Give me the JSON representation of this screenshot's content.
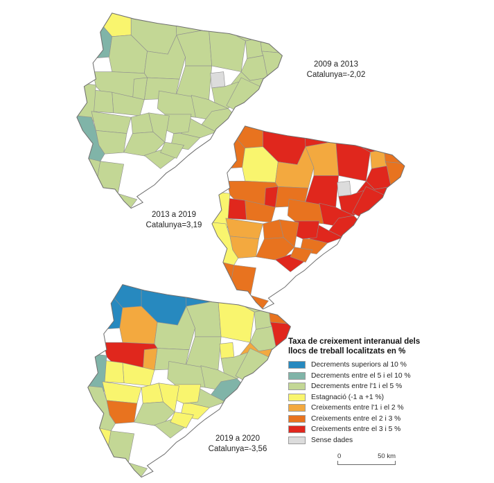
{
  "figure": {
    "legend": {
      "title_line1": "Taxa de creixement interanual dels",
      "title_line2": "llocs de treball localitzats en %",
      "items": [
        {
          "code": "b",
          "label": "Decrements superiors al 10 %",
          "color": "#2789bf"
        },
        {
          "code": "t",
          "label": "Decrements entre el 5 i el 10 %",
          "color": "#80b4a8"
        },
        {
          "code": "g3",
          "label": "Decrements entre l'1 i el 5 %",
          "color": "#c3d795"
        },
        {
          "code": "y",
          "label": "Estagnació (-1 a +1 %)",
          "color": "#f9f56e"
        },
        {
          "code": "o1",
          "label": "Creixements entre l'1 i el 2 %",
          "color": "#f3a93f"
        },
        {
          "code": "o2",
          "label": "Creixements entre el 2 i 3 %",
          "color": "#e8731f"
        },
        {
          "code": "r",
          "label": "Creixements entre el 3 i 5 %",
          "color": "#e0271d"
        },
        {
          "code": "nd",
          "label": "Sense dades",
          "color": "#dcdcdc"
        }
      ]
    },
    "scalebar": {
      "start": "0",
      "end": "50 km"
    },
    "maps": [
      {
        "id": "map-2009-2013",
        "period": "2009 a 2013",
        "catalunya": "Catalunya=-2,02",
        "regions": {
          "aran": "y",
          "pallars-sobira": "g3",
          "cerdanya": "g3",
          "ripolles": "y",
          "garrotxa": "g3",
          "alt-emporda": "g3",
          "alta-ribagorca": "t",
          "pallars-jussa": "g3",
          "alt-urgell": "g3",
          "bergueda": "g3",
          "osona": "g3",
          "pla-estany": "g3",
          "baix-emporda": "g3",
          "girones": "g3",
          "selva": "g3",
          "noguera": "g3",
          "solsones": "g3",
          "bages": "g3",
          "moianes": "nd",
          "valles-oriental": "g3",
          "maresme": "g3",
          "valles-occidental": "g3",
          "barcelones": "g3",
          "baix-llobregat": "g3",
          "garraf": "g3",
          "alt-penedes": "g3",
          "anoia": "g3",
          "segarra": "g3",
          "urgell": "g3",
          "pla-urgell": "g3",
          "segria": "g3",
          "garrigues": "g3",
          "conca": "g3",
          "alt-camp": "g3",
          "baix-camp": "g3",
          "priorat": "g3",
          "ribera-ebre": "t",
          "tarragones": "g3",
          "baix-penedes": "g3",
          "terra-alta": "g3",
          "baix-ebre": "g3",
          "montsia": "g3"
        }
      },
      {
        "id": "map-2013-2019",
        "period": "2013 a 2019",
        "catalunya": "Catalunya=3,19",
        "regions": {
          "aran": "o2",
          "pallars-sobira": "r",
          "cerdanya": "r",
          "ripolles": "o1",
          "garrotxa": "r",
          "alt-emporda": "o2",
          "alta-ribagorca": "o2",
          "pallars-jussa": "y",
          "alt-urgell": "o1",
          "bergueda": "o1",
          "osona": "r",
          "pla-estany": "o1",
          "baix-emporda": "o2",
          "girones": "r",
          "selva": "r",
          "noguera": "o2",
          "solsones": "o2",
          "bages": "r",
          "moianes": "nd",
          "valles-oriental": "r",
          "maresme": "r",
          "valles-occidental": "r",
          "barcelones": "r",
          "baix-llobregat": "r",
          "garraf": "o2",
          "alt-penedes": "r",
          "anoia": "o2",
          "segarra": "r",
          "urgell": "o2",
          "pla-urgell": "r",
          "segria": "y",
          "garrigues": "o1",
          "conca": "o2",
          "alt-camp": "o2",
          "baix-camp": "o2",
          "priorat": "o1",
          "ribera-ebre": "y",
          "tarragones": "r",
          "baix-penedes": "o2",
          "terra-alta": "o2",
          "baix-ebre": "o2",
          "montsia": "o2"
        }
      },
      {
        "id": "map-2019-2020",
        "period": "2019 a 2020",
        "catalunya": "Catalunya=-3,56",
        "regions": {
          "aran": "b",
          "pallars-sobira": "b",
          "cerdanya": "b",
          "ripolles": "g3",
          "garrotxa": "g3",
          "alt-emporda": "o2",
          "alta-ribagorca": "b",
          "pallars-jussa": "o1",
          "alt-urgell": "g3",
          "bergueda": "g3",
          "osona": "y",
          "pla-estany": "g3",
          "baix-emporda": "r",
          "girones": "g3",
          "selva": "o1",
          "noguera": "r",
          "solsones": "g3",
          "bages": "g3",
          "moianes": "y",
          "valles-oriental": "g3",
          "maresme": "g3",
          "valles-occidental": "g3",
          "barcelones": "t",
          "baix-llobregat": "g3",
          "garraf": "y",
          "alt-penedes": "y",
          "anoia": "g3",
          "segarra": "o1",
          "urgell": "y",
          "pla-urgell": "y",
          "segria": "t",
          "garrigues": "y",
          "conca": "y",
          "alt-camp": "y",
          "baix-camp": "g3",
          "priorat": "o2",
          "ribera-ebre": "g3",
          "tarragones": "g3",
          "baix-penedes": "y",
          "terra-alta": "y",
          "baix-ebre": "g3",
          "montsia": "g3"
        }
      }
    ]
  }
}
